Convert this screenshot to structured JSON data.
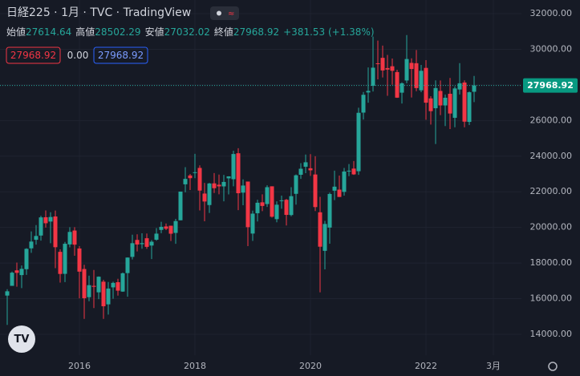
{
  "chart_data": {
    "type": "candlestick",
    "title": "日経225 · 1月 · TVC · TradingView",
    "ohlc_legend": {
      "labels": [
        "始値",
        "高値",
        "安値",
        "終値"
      ],
      "values": [
        27614.64,
        28502.29,
        27032.02,
        27968.92
      ],
      "change": "+381.53 (+1.38%)"
    },
    "indicators": {
      "values": [
        27968.92,
        0,
        27968.92
      ],
      "value_labels": [
        "27968.92",
        "0.00",
        "27968.92"
      ]
    },
    "last_price": 27968.92,
    "up_color": "#26a69a",
    "down_color": "#f23645",
    "open": [
      16174,
      16720,
      17590,
      17325,
      17655,
      18826,
      19306,
      19544,
      20572,
      20329,
      20614,
      18629,
      17394,
      19046,
      19826,
      18818,
      17665,
      16083,
      16719,
      16357,
      16955,
      15682,
      16635,
      16926,
      16399,
      17437,
      18346,
      19298,
      19061,
      19393,
      18983,
      19310,
      19860,
      20055,
      20095,
      19691,
      20400,
      22420,
      22916,
      23073,
      23339,
      21901,
      21256,
      22473,
      22396,
      22303,
      22755,
      22707,
      24163,
      21953,
      22574,
      19655,
      20797,
      21409,
      21313,
      22307,
      20465,
      21504,
      21551,
      20696,
      21885,
      22955,
      23407,
      23319,
      22971,
      20849,
      18686,
      19991,
      22062,
      22122,
      21995,
      23183,
      23302,
      23154,
      26444,
      27575,
      27949,
      29210,
      29519,
      28944,
      29046,
      28720,
      27563,
      28247,
      29235,
      29216,
      27697,
      28954,
      27242,
      26690,
      27660,
      26847,
      27502,
      26153,
      27742,
      28134,
      25922,
      27614.64
    ],
    "high": [
      16533,
      17520,
      18030,
      17865,
      18830,
      19778,
      20133,
      20655,
      20952,
      20850,
      20946,
      18769,
      19187,
      20012,
      20012,
      18951,
      17905,
      17291,
      17613,
      17251,
      17062,
      16938,
      16953,
      17119,
      17473,
      18316,
      19592,
      19615,
      19668,
      19656,
      19289,
      19961,
      20318,
      20223,
      20100,
      20481,
      22011,
      23382,
      23000,
      24129,
      23486,
      22502,
      22500,
      23050,
      22966,
      22949,
      22869,
      24306,
      24448,
      22698,
      22574,
      20940,
      21556,
      21860,
      22362,
      22307,
      21462,
      21784,
      21600,
      22255,
      22974,
      23608,
      24091,
      24115,
      23995,
      21719,
      20365,
      21955,
      23185,
      22908,
      23338,
      23559,
      23725,
      26716,
      27602,
      28979,
      30714,
      30485,
      30208,
      29685,
      29480,
      28852,
      28139,
      30795,
      29489,
      29960,
      29121,
      29388,
      27367,
      28252,
      28249,
      27458,
      28389,
      27914,
      29222,
      28254,
      27631,
      28502.29
    ],
    "low": [
      14529,
      16720,
      16672,
      16592,
      17335,
      18571,
      19034,
      19258,
      19990,
      19115,
      17714,
      16901,
      16930,
      18880,
      18410,
      16017,
      14865,
      15858,
      15471,
      15975,
      14864,
      15106,
      15999,
      16170,
      16383,
      16111,
      18200,
      18650,
      18805,
      18800,
      18224,
      19254,
      19676,
      19850,
      19239,
      19081,
      20400,
      21972,
      22102,
      22765,
      20950,
      20347,
      20810,
      21931,
      21859,
      21462,
      21851,
      22307,
      20971,
      21243,
      18948,
      19241,
      20333,
      20911,
      21148,
      20553,
      20289,
      21046,
      20110,
      20625,
      21276,
      22726,
      23044,
      22892,
      20916,
      16358,
      17646,
      19084,
      21530,
      21710,
      21783,
      22878,
      22948,
      22948,
      26057,
      27002,
      27629,
      28308,
      28419,
      27385,
      28010,
      27272,
      26954,
      28089,
      27293,
      27644,
      27588,
      26044,
      25775,
      24681,
      26304,
      25688,
      25520,
      25621,
      27463,
      25621,
      25744,
      27032.02
    ],
    "close": [
      16414,
      17459,
      17450,
      17674,
      18797,
      19206,
      19520,
      20563,
      20235,
      20585,
      18890,
      17388,
      19083,
      19747,
      19033,
      17518,
      16026,
      16758,
      16666,
      17234,
      15575,
      16569,
      16887,
      16449,
      17425,
      18308,
      19114,
      19041,
      19119,
      18909,
      19197,
      19651,
      20033,
      19925,
      19646,
      20356,
      22011,
      22724,
      22764,
      23098,
      22068,
      21454,
      22467,
      22201,
      22304,
      22553,
      22865,
      24120,
      21920,
      22351,
      20014,
      20773,
      21385,
      21205,
      22258,
      20601,
      21275,
      21521,
      20704,
      21755,
      22927,
      23293,
      23656,
      23205,
      21142,
      18917,
      20193,
      21877,
      22288,
      21710,
      23139,
      23185,
      22977,
      26433,
      27444,
      27663,
      28966,
      29178,
      28812,
      28860,
      28791,
      27283,
      28089,
      29452,
      28892,
      27821,
      28791,
      27001,
      26526,
      27821,
      26847,
      27279,
      26393,
      27801,
      28091,
      25937,
      27587,
      27968.92
    ],
    "ylim": [
      12830,
      32765
    ],
    "yticks": [
      {
        "value": 14000,
        "label": "14000.00"
      },
      {
        "value": 16000,
        "label": "16000.00"
      },
      {
        "value": 18000,
        "label": "18000.00"
      },
      {
        "value": 20000,
        "label": "20000.00"
      },
      {
        "value": 22000,
        "label": "22000.00"
      },
      {
        "value": 24000,
        "label": "24000.00"
      },
      {
        "value": 26000,
        "label": "26000.00"
      },
      {
        "value": 28000,
        "label": "28000.00"
      },
      {
        "value": 30000,
        "label": "30000.00"
      },
      {
        "value": 32000,
        "label": "32000.00"
      }
    ],
    "xticks": [
      {
        "value": 15,
        "label": "2016"
      },
      {
        "value": 39,
        "label": "2018"
      },
      {
        "value": 63,
        "label": "2020"
      },
      {
        "value": 87,
        "label": "2022"
      },
      {
        "value": 101,
        "label": "3月"
      }
    ],
    "grid": true
  }
}
